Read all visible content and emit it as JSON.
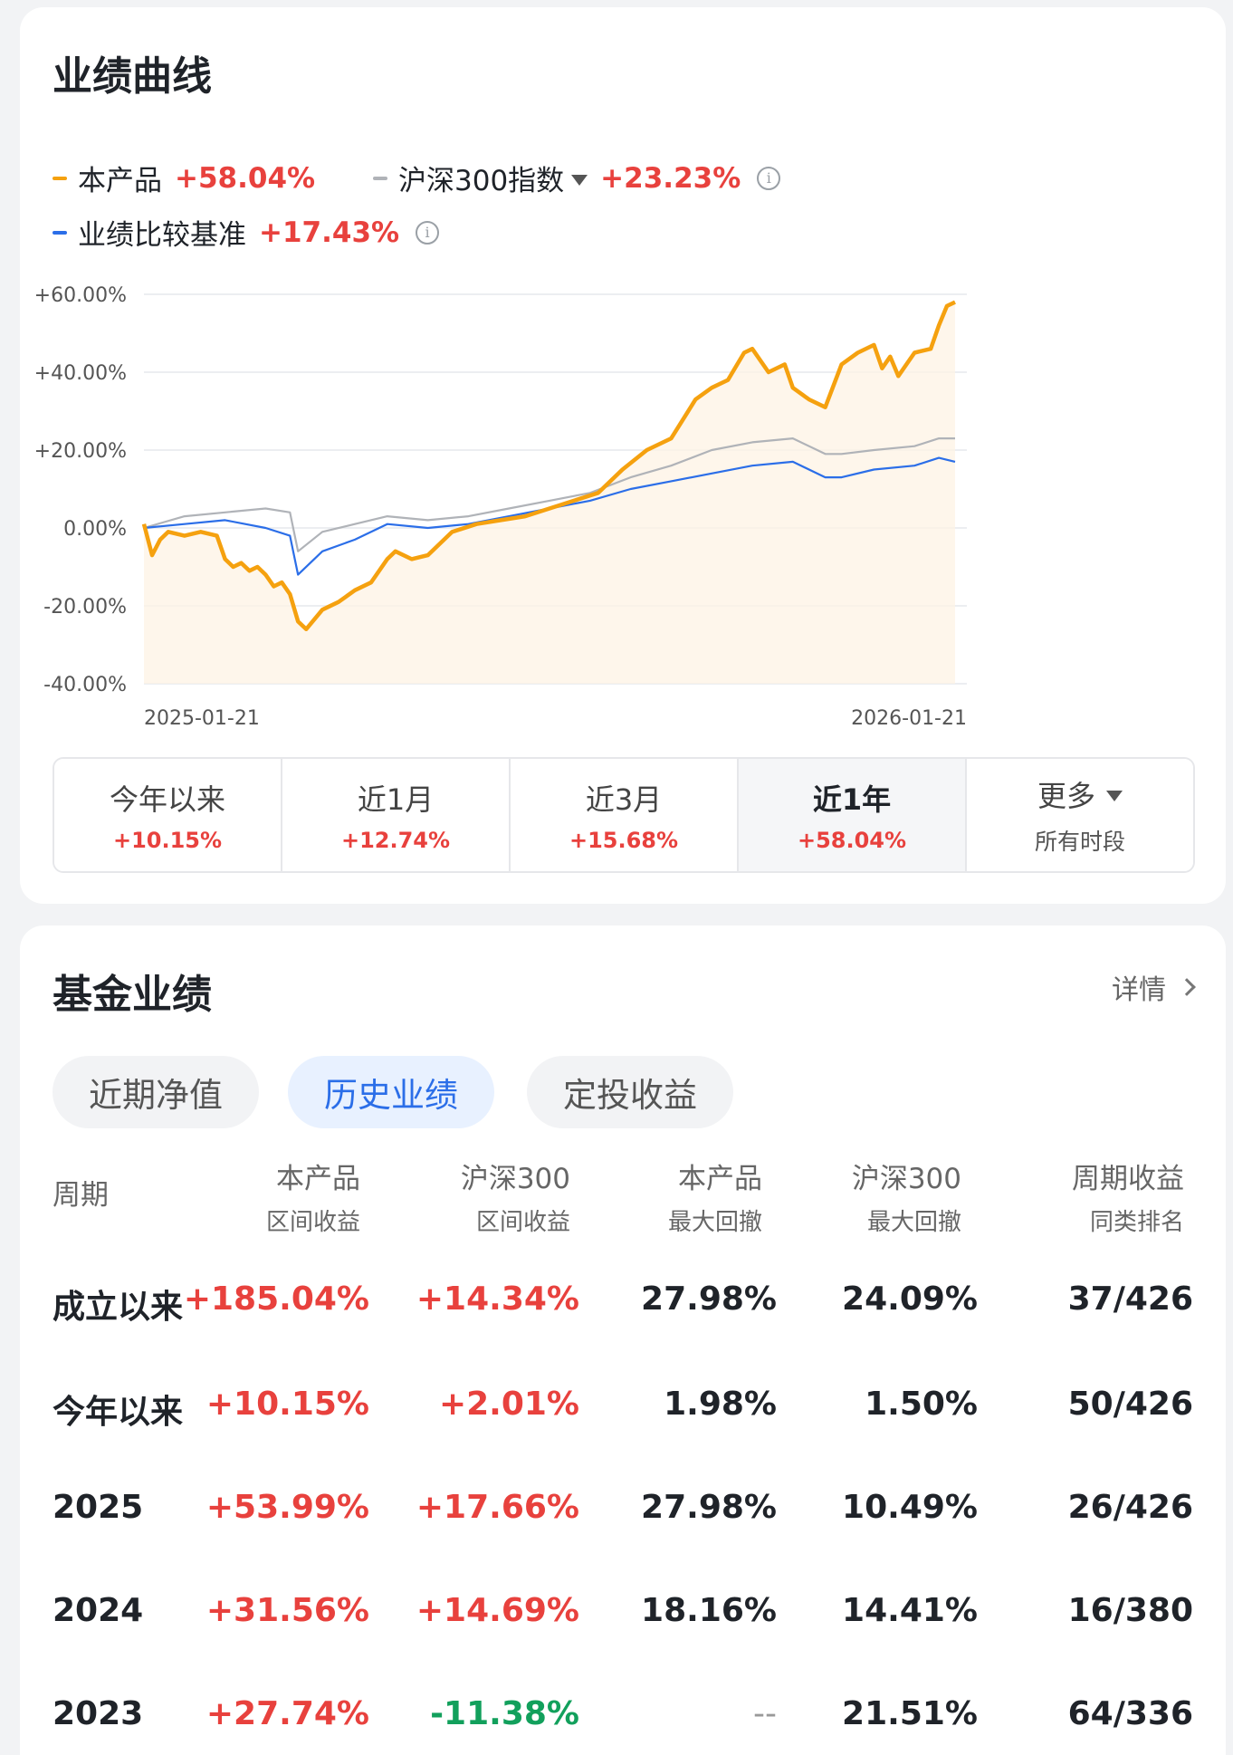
{
  "chart_card": {
    "title": "业绩曲线",
    "legend": [
      {
        "name": "本产品",
        "value": "+58.04%",
        "color": "#f5a10f"
      },
      {
        "name": "沪深300指数",
        "value": "+23.23%",
        "color": "#b0b3b8",
        "dropdown": true,
        "info": true
      },
      {
        "name": "业绩比较基准",
        "value": "+17.43%",
        "color": "#2b6ee8",
        "info": true
      }
    ],
    "info_glyph": "i",
    "y_ticks": [
      "+60.00%",
      "+40.00%",
      "+20.00%",
      "0.00%",
      "-20.00%",
      "-40.00%"
    ],
    "x_start": "2025-01-21",
    "x_end": "2026-01-21",
    "periods": [
      {
        "label": "今年以来",
        "value": "+10.15%"
      },
      {
        "label": "近1月",
        "value": "+12.74%"
      },
      {
        "label": "近3月",
        "value": "+15.68%"
      },
      {
        "label": "近1年",
        "value": "+58.04%",
        "active": true
      },
      {
        "label": "更多",
        "sub": "所有时段",
        "dropdown": true
      }
    ]
  },
  "chart_data": {
    "type": "line",
    "x_range": [
      "2025-01-21",
      "2026-01-21"
    ],
    "ylim": [
      -40,
      60
    ],
    "y_unit": "%",
    "grid": true,
    "legend_position": "top",
    "series": [
      {
        "name": "本产品",
        "color": "#f5a10f",
        "x": [
          0,
          0.01,
          0.02,
          0.03,
          0.05,
          0.07,
          0.09,
          0.1,
          0.11,
          0.12,
          0.13,
          0.14,
          0.15,
          0.16,
          0.17,
          0.18,
          0.19,
          0.2,
          0.22,
          0.24,
          0.26,
          0.28,
          0.3,
          0.31,
          0.33,
          0.35,
          0.38,
          0.41,
          0.44,
          0.47,
          0.5,
          0.53,
          0.56,
          0.59,
          0.62,
          0.65,
          0.68,
          0.7,
          0.72,
          0.74,
          0.75,
          0.77,
          0.79,
          0.8,
          0.82,
          0.84,
          0.86,
          0.88,
          0.9,
          0.91,
          0.92,
          0.93,
          0.95,
          0.97,
          0.98,
          0.99,
          1.0
        ],
        "y": [
          1,
          -7,
          -3,
          -1,
          -2,
          -1,
          -2,
          -8,
          -10,
          -9,
          -11,
          -10,
          -12,
          -15,
          -14,
          -17,
          -24,
          -26,
          -21,
          -19,
          -16,
          -14,
          -8,
          -6,
          -8,
          -7,
          -1,
          1,
          2,
          3,
          5,
          7,
          9,
          15,
          20,
          23,
          33,
          36,
          38,
          45,
          46,
          40,
          42,
          36,
          33,
          31,
          42,
          45,
          47,
          41,
          44,
          39,
          45,
          46,
          52,
          57,
          58
        ]
      },
      {
        "name": "沪深300指数",
        "color": "#b0b3b8",
        "x": [
          0,
          0.05,
          0.1,
          0.15,
          0.18,
          0.19,
          0.22,
          0.26,
          0.3,
          0.35,
          0.4,
          0.45,
          0.5,
          0.55,
          0.6,
          0.65,
          0.7,
          0.75,
          0.8,
          0.84,
          0.86,
          0.9,
          0.95,
          0.98,
          1.0
        ],
        "y": [
          0,
          3,
          4,
          5,
          4,
          -6,
          -1,
          1,
          3,
          2,
          3,
          5,
          7,
          9,
          13,
          16,
          20,
          22,
          23,
          19,
          19,
          20,
          21,
          23,
          23
        ]
      },
      {
        "name": "业绩比较基准",
        "color": "#2b6ee8",
        "x": [
          0,
          0.05,
          0.1,
          0.15,
          0.18,
          0.19,
          0.22,
          0.26,
          0.3,
          0.35,
          0.4,
          0.45,
          0.5,
          0.55,
          0.6,
          0.65,
          0.7,
          0.75,
          0.8,
          0.84,
          0.86,
          0.9,
          0.95,
          0.98,
          1.0
        ],
        "y": [
          0,
          1,
          2,
          0,
          -2,
          -12,
          -6,
          -3,
          1,
          0,
          1,
          3,
          5,
          7,
          10,
          12,
          14,
          16,
          17,
          13,
          13,
          15,
          16,
          18,
          17
        ]
      }
    ]
  },
  "perf_card": {
    "title": "基金业绩",
    "detail_label": "详情",
    "pills": [
      {
        "label": "近期净值"
      },
      {
        "label": "历史业绩",
        "active": true
      },
      {
        "label": "定投收益"
      }
    ],
    "headers": [
      {
        "t1": "周期",
        "t2": ""
      },
      {
        "t1": "本产品",
        "t2": "区间收益"
      },
      {
        "t1": "沪深300",
        "t2": "区间收益"
      },
      {
        "t1": "本产品",
        "t2": "最大回撤"
      },
      {
        "t1": "沪深300",
        "t2": "最大回撤"
      },
      {
        "t1": "周期收益",
        "t2": "同类排名"
      }
    ],
    "rows": [
      {
        "period": "成立以来",
        "prod": "+185.04%",
        "idx": "+14.34%",
        "prod_dd": "27.98%",
        "idx_dd": "24.09%",
        "rank": "37/426"
      },
      {
        "period": "今年以来",
        "prod": "+10.15%",
        "idx": "+2.01%",
        "prod_dd": "1.98%",
        "idx_dd": "1.50%",
        "rank": "50/426"
      },
      {
        "period": "2025",
        "prod": "+53.99%",
        "idx": "+17.66%",
        "prod_dd": "27.98%",
        "idx_dd": "10.49%",
        "rank": "26/426"
      },
      {
        "period": "2024",
        "prod": "+31.56%",
        "idx": "+14.69%",
        "prod_dd": "18.16%",
        "idx_dd": "14.41%",
        "rank": "16/380"
      },
      {
        "period": "2023",
        "prod": "+27.74%",
        "idx": "-11.38%",
        "prod_dd": "--",
        "idx_dd": "21.51%",
        "rank": "64/336"
      }
    ]
  }
}
